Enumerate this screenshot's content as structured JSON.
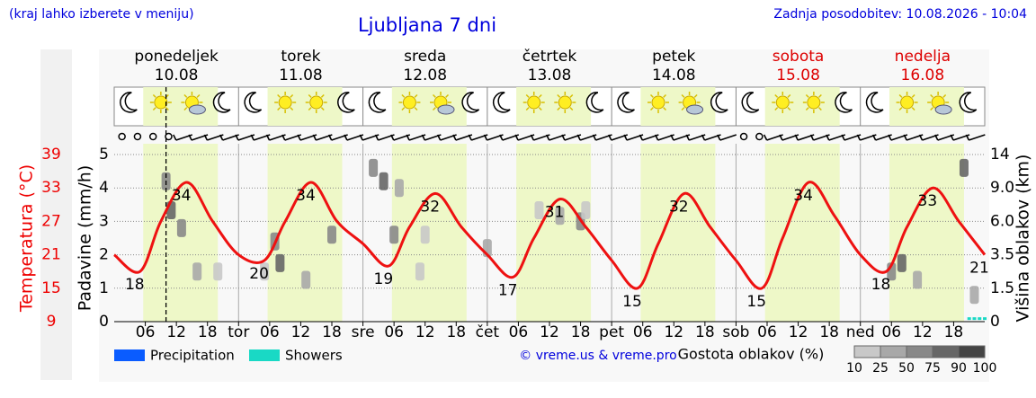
{
  "chart_data": {
    "type": "line",
    "title": "Ljubljana 7 dni",
    "subtitle": "(kraj lahko izberete v meniju)",
    "updated": "Zadnja posodobitev: 10.08.2026 - 10:04",
    "credit": "© vreme.us & vreme.pro",
    "days": [
      {
        "name": "ponedeljek",
        "date": "10.08",
        "color": "#000000"
      },
      {
        "name": "torek",
        "date": "11.08",
        "color": "#000000"
      },
      {
        "name": "sreda",
        "date": "12.08",
        "color": "#000000"
      },
      {
        "name": "četrtek",
        "date": "13.08",
        "color": "#000000"
      },
      {
        "name": "petek",
        "date": "14.08",
        "color": "#000000"
      },
      {
        "name": "sobota",
        "date": "15.08",
        "color": "#dd0000"
      },
      {
        "name": "nedelja",
        "date": "16.08",
        "color": "#dd0000"
      }
    ],
    "xlim": [
      0,
      168
    ],
    "xticks": [
      {
        "value": 6,
        "label": "06"
      },
      {
        "value": 12,
        "label": "12"
      },
      {
        "value": 18,
        "label": "18"
      },
      {
        "value": 24,
        "label": "tor"
      },
      {
        "value": 30,
        "label": "06"
      },
      {
        "value": 36,
        "label": "12"
      },
      {
        "value": 42,
        "label": "18"
      },
      {
        "value": 48,
        "label": "sre"
      },
      {
        "value": 54,
        "label": "06"
      },
      {
        "value": 60,
        "label": "12"
      },
      {
        "value": 66,
        "label": "18"
      },
      {
        "value": 72,
        "label": "čet"
      },
      {
        "value": 78,
        "label": "06"
      },
      {
        "value": 84,
        "label": "12"
      },
      {
        "value": 90,
        "label": "18"
      },
      {
        "value": 96,
        "label": "pet"
      },
      {
        "value": 102,
        "label": "06"
      },
      {
        "value": 108,
        "label": "12"
      },
      {
        "value": 114,
        "label": "18"
      },
      {
        "value": 120,
        "label": "sob"
      },
      {
        "value": 126,
        "label": "06"
      },
      {
        "value": 132,
        "label": "12"
      },
      {
        "value": 138,
        "label": "18"
      },
      {
        "value": 144,
        "label": "ned"
      },
      {
        "value": 150,
        "label": "06"
      },
      {
        "value": 156,
        "label": "12"
      },
      {
        "value": 162,
        "label": "18"
      }
    ],
    "now": 10,
    "ylabel": "Padavine (mm/h)",
    "ylim": [
      0,
      5
    ],
    "yticks": [
      0,
      1,
      2,
      3,
      4,
      5
    ],
    "grid": true,
    "temp_axis": {
      "label": "Temperatura (°C)",
      "lim": [
        9,
        39
      ],
      "ticks": [
        9,
        15,
        21,
        27,
        33,
        39
      ],
      "color": "#ee0000"
    },
    "y2label": "Višina oblakov (km)",
    "y2ticks": [
      0,
      1.5,
      3.5,
      {
        "value": 6,
        "label": "6.0"
      },
      {
        "value": 9,
        "label": "9.0"
      },
      14
    ],
    "temperature": {
      "color": "#ee1111",
      "x": [
        0,
        5,
        9,
        14,
        19,
        24,
        29,
        33,
        38,
        43,
        48,
        53,
        57,
        62,
        67,
        72,
        77,
        81,
        86,
        91,
        96,
        101,
        105,
        110,
        115,
        120,
        125,
        129,
        134,
        139,
        144,
        149,
        153,
        158,
        163,
        168
      ],
      "values": [
        21,
        18,
        27,
        34,
        27,
        21,
        20,
        27,
        34,
        27,
        23,
        19,
        26,
        32,
        26,
        21,
        17,
        24,
        31,
        26,
        20,
        15,
        23,
        32,
        26,
        20,
        15,
        24,
        34,
        28,
        21,
        18,
        26,
        33,
        27,
        21
      ],
      "value_labels": [
        "",
        "18",
        "",
        "34",
        "",
        "",
        "20",
        "",
        "34",
        "",
        "",
        "19",
        "",
        "32",
        "",
        "",
        "17",
        "",
        "31",
        "",
        "",
        "15",
        "",
        "32",
        "",
        "",
        "15",
        "",
        "34",
        "",
        "",
        "18",
        "",
        "33",
        "",
        "21"
      ]
    },
    "series": [
      {
        "name": "Precipitation",
        "color": "#0a5cff",
        "x": [],
        "values": []
      },
      {
        "name": "Showers",
        "color": "#19d9c5",
        "x": [
          165,
          166,
          167,
          168
        ],
        "values": [
          0.05,
          0.05,
          0.05,
          0.05
        ]
      }
    ],
    "clouds": {
      "x": [
        10,
        11,
        13,
        16,
        20,
        29,
        31,
        32,
        37,
        42,
        50,
        52,
        55,
        54,
        59,
        60,
        72,
        82,
        86,
        90,
        91,
        150,
        152,
        155,
        164,
        166
      ],
      "y": [
        10,
        7,
        5.5,
        2.5,
        2.5,
        2.5,
        4.5,
        3,
        2,
        5,
        12,
        10,
        9,
        5,
        2.5,
        5,
        4,
        7,
        6.5,
        6,
        7,
        2.5,
        3,
        2,
        12,
        1.2
      ],
      "values": [
        75,
        90,
        75,
        50,
        25,
        25,
        75,
        90,
        50,
        75,
        75,
        90,
        50,
        75,
        25,
        25,
        50,
        25,
        50,
        75,
        25,
        75,
        90,
        50,
        90,
        50
      ]
    },
    "cloud_scale": {
      "label": "Gostota oblakov (%)",
      "ticks": [
        10,
        25,
        50,
        75,
        90,
        100
      ],
      "colors": [
        "#e4e4e4",
        "#c8c8c8",
        "#a8a8a8",
        "#888888",
        "#666666",
        "#444444"
      ]
    }
  }
}
